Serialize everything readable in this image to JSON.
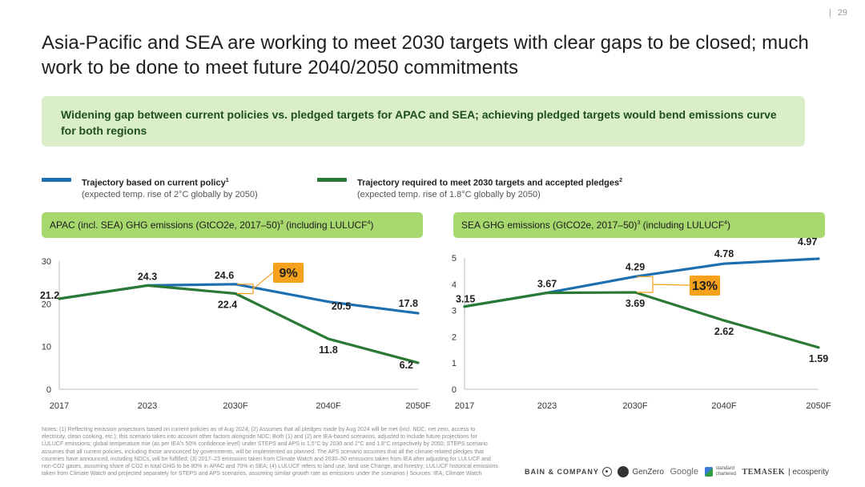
{
  "page": {
    "number": "29",
    "separator": "|",
    "title": "Asia-Pacific and SEA are working to meet 2030 targets with clear gaps to be closed; much work to be done to meet future 2040/2050 commitments",
    "banner": "Widening gap between current policies vs. pledged targets for APAC and SEA; achieving pledged targets would bend emissions curve for both regions"
  },
  "legend": {
    "current": {
      "label": "Trajectory based on current policy",
      "sup": "1",
      "sub": "(expected temp. rise of 2°C globally by 2050)",
      "color": "#1d6fb0"
    },
    "pledged": {
      "label": "Trajectory required to meet 2030 targets and accepted pledges",
      "sup": "2",
      "sub": "(expected temp. rise of 1.8°C globally by 2050)",
      "color": "#2a7a36"
    }
  },
  "panels": {
    "apac": {
      "header_main": "APAC (incl. SEA) GHG emissions (GtCO2e, 2017–50)",
      "sup1": "3",
      "header_tail": " (including LULUCF",
      "sup2": "4",
      "header_end": ")"
    },
    "sea": {
      "header_main": "SEA GHG emissions (GtCO2e, 2017–50)",
      "sup1": "3",
      "header_tail": " (including LULUCF",
      "sup2": "4",
      "header_end": ")"
    }
  },
  "chart_data": [
    {
      "type": "line",
      "title": "APAC (incl. SEA) GHG emissions (GtCO2e, 2017–50) (including LULUCF)",
      "categories": [
        "2017",
        "2023",
        "2030F",
        "2040F",
        "2050F"
      ],
      "ylim": [
        0,
        30
      ],
      "yticks": [
        0,
        10,
        20,
        30
      ],
      "series": [
        {
          "name": "Trajectory based on current policy",
          "color": "#1d6fb0",
          "values": [
            21.2,
            24.3,
            24.6,
            20.5,
            17.8
          ],
          "labels": [
            "21.2",
            "24.3",
            "24.6",
            "20.5",
            "17.8"
          ]
        },
        {
          "name": "Trajectory required to meet 2030 targets and accepted pledges",
          "color": "#2a7a36",
          "values": [
            21.2,
            24.3,
            22.4,
            11.8,
            6.2
          ],
          "labels": [
            "",
            "",
            "22.4",
            "11.8",
            "6.2"
          ]
        }
      ],
      "gap_annotation": {
        "label": "9%",
        "category": "2030F"
      }
    },
    {
      "type": "line",
      "title": "SEA GHG emissions (GtCO2e, 2017–50) (including LULUCF)",
      "categories": [
        "2017",
        "2023",
        "2030F",
        "2040F",
        "2050F"
      ],
      "ylim": [
        0,
        5
      ],
      "yticks": [
        0,
        1,
        2,
        3,
        4,
        5
      ],
      "series": [
        {
          "name": "Trajectory based on current policy",
          "color": "#1d6fb0",
          "values": [
            3.15,
            3.67,
            4.29,
            4.78,
            4.97
          ],
          "labels": [
            "3.15",
            "3.67",
            "4.29",
            "4.78",
            "4.97"
          ]
        },
        {
          "name": "Trajectory required to meet 2030 targets and accepted pledges",
          "color": "#2a7a36",
          "values": [
            3.15,
            3.67,
            3.69,
            2.62,
            1.59
          ],
          "labels": [
            "",
            "",
            "3.69",
            "2.62",
            "1.59"
          ]
        }
      ],
      "gap_annotation": {
        "label": "13%",
        "category": "2030F"
      }
    }
  ],
  "notes": "Notes: (1) Reflecting emission projections based on current policies as of Aug 2024; (2) Assumes that all pledges made by Aug 2024 will be met (incl. NDC, net zero, access to electricity, clean cooking, etc.); this scenario takes into account other factors alongside NDC; Both (1) and (2) are IEA-based scenarios, adjusted to include future projections for LULUCF emissions; global temperature rise (as per IEA's 50% confidence level) under STEPS and APS is 1.5°C by 2030 and 2°C and 1.8°C respectively by 2050; STEPS scenario assumes that all current policies, including those announced by governments, will be implemented as planned. The APS scenario assumes that all the climate-related pledges that countries have announced, including NDCs, will be fulfilled; (3) 2017–23 emissions taken from Climate Watch and 2030–50 emissions taken from IEA after adjusting for LULUCF and non-CO2 gases, assuming share of CO2 in total GHG to be 80% in APAC and 70% in SEA; (4) LULUCF refers to land use, land use Change, and forestry; LULUCF historical emissions taken from Climate Watch and projected separately for STEPS and APS scenarios, assuming similar growth rate as emissions under the scenarios | Sources: IEA; Climate Watch",
  "logos": {
    "bain": "BAIN & COMPANY",
    "genzero": "GenZero",
    "google": "Google",
    "sc_top": "standard",
    "sc_bottom": "chartered",
    "temasek": "TEMASEK",
    "ecosperity": "| ecosperity"
  },
  "colors": {
    "banner_bg": "#d9eec9",
    "panel_header_bg": "#a7d86e",
    "annotation_bg": "#f5a11c"
  }
}
